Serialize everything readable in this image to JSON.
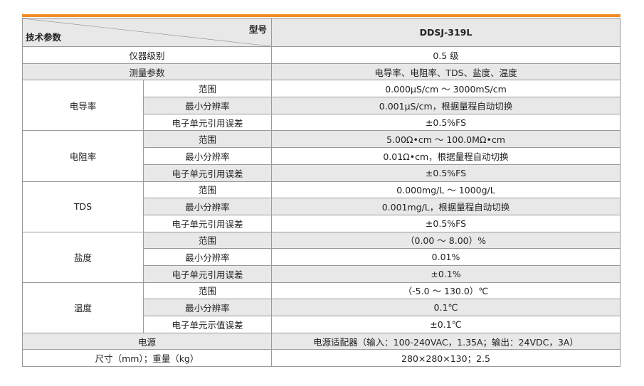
{
  "accent_color": "#f28c28",
  "header": {
    "model_label": "型号",
    "param_label": "技术参数",
    "model": "DDSJ-319L"
  },
  "rows": {
    "level": {
      "label": "仪器级别",
      "value": "0.5 级"
    },
    "params": {
      "label": "测量参数",
      "value": "电导率、电阻率、TDS、盐度、温度"
    },
    "power": {
      "label": "电源",
      "value": "电源适配器（输入：100-240VAC，1.35A；输出：24VDC，3A）"
    },
    "size": {
      "label": "尺寸（mm）；重量（kg）",
      "value": "280×280×130；2.5"
    }
  },
  "groups": [
    {
      "name": "电导率",
      "items": [
        {
          "label": "范围",
          "value": "0.000μS/cm ～ 3000mS/cm"
        },
        {
          "label": "最小分辨率",
          "value": "0.001μS/cm，根据量程自动切换"
        },
        {
          "label": "电子单元引用误差",
          "value": "±0.5%FS"
        }
      ]
    },
    {
      "name": "电阻率",
      "items": [
        {
          "label": "范围",
          "value": "5.00Ω•cm ～ 100.0MΩ•cm"
        },
        {
          "label": "最小分辨率",
          "value": "0.01Ω•cm，根据量程自动切换"
        },
        {
          "label": "电子单元引用误差",
          "value": "±0.5%FS"
        }
      ]
    },
    {
      "name": "TDS",
      "items": [
        {
          "label": "范围",
          "value": "0.000mg/L ～ 1000g/L"
        },
        {
          "label": "最小分辨率",
          "value": "0.001mg/L，根据量程自动切换"
        },
        {
          "label": "电子单元引用误差",
          "value": "±0.5%FS"
        }
      ]
    },
    {
      "name": "盐度",
      "items": [
        {
          "label": "范围",
          "value": "（0.00 ～ 8.00）%"
        },
        {
          "label": "最小分辨率",
          "value": "0.01%"
        },
        {
          "label": "电子单元引用误差",
          "value": "±0.1%"
        }
      ]
    },
    {
      "name": "温度",
      "items": [
        {
          "label": "范围",
          "value": "（-5.0 ～ 130.0）℃"
        },
        {
          "label": "最小分辨率",
          "value": "0.1℃"
        },
        {
          "label": "电子单元示值误差",
          "value": "±0.1℃"
        }
      ]
    }
  ]
}
